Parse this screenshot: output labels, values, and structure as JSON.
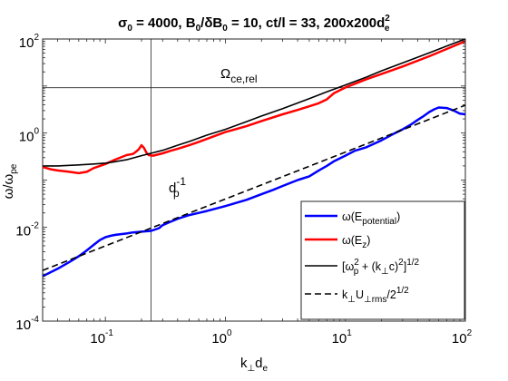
{
  "chart_data": {
    "type": "line",
    "title": {
      "sigma_prefix": "σ",
      "sigma_sub": "0",
      "sigma_value": " = 4000, B",
      "b_sub": "0",
      "ratio_text": "/δB",
      "db_sub": "0",
      "rest": " = 10, ct/l = 33, 200x200d",
      "d_sup": "2",
      "d_sub": "e"
    },
    "xlabel": {
      "base": "k",
      "sub": "⊥",
      "mid": "d",
      "sub2": "e"
    },
    "ylabel": {
      "base": "ω/ω",
      "sub": "pe"
    },
    "x_scale": "log",
    "y_scale": "log",
    "xlim": [
      0.03,
      100
    ],
    "ylim": [
      0.0001,
      100
    ],
    "x_ticks": [
      {
        "value": 0.1,
        "base": "10",
        "exp": "-1"
      },
      {
        "value": 1,
        "base": "10",
        "exp": "0"
      },
      {
        "value": 10,
        "base": "10",
        "exp": "1"
      },
      {
        "value": 100,
        "base": "10",
        "exp": "2"
      }
    ],
    "y_ticks": [
      {
        "value": 0.0001,
        "base": "10",
        "exp": "-4"
      },
      {
        "value": 0.01,
        "base": "10",
        "exp": "-2"
      },
      {
        "value": 1,
        "base": "10",
        "exp": "0"
      },
      {
        "value": 100,
        "base": "10",
        "exp": "2"
      }
    ],
    "grid": false,
    "reference_lines": {
      "horizontal": {
        "y": 9.2,
        "label": "Ω",
        "label_sub": "ce,rel"
      },
      "vertical": {
        "x": 0.24,
        "label": "d",
        "label_sup": "-1",
        "label_sub": "p"
      }
    },
    "legend_position": "bottom-right",
    "series": [
      {
        "label": {
          "base": "ω(E",
          "sub": "potential",
          "end": ")"
        },
        "color": "#0000ff",
        "style": "solid",
        "x": [
          0.03,
          0.04,
          0.05,
          0.06,
          0.07,
          0.08,
          0.09,
          0.1,
          0.11,
          0.12,
          0.13,
          0.15,
          0.17,
          0.2,
          0.24,
          0.28,
          0.3,
          0.35,
          0.4,
          0.5,
          0.6,
          0.7,
          0.8,
          1,
          1.2,
          1.5,
          2,
          2.5,
          3,
          4,
          5,
          6,
          7,
          8,
          10,
          12,
          15,
          20,
          25,
          30,
          35,
          40,
          45,
          50,
          55,
          60,
          70,
          80,
          90,
          100
        ],
        "y": [
          0.0009,
          0.0013,
          0.0018,
          0.0024,
          0.0032,
          0.0042,
          0.0053,
          0.0061,
          0.0065,
          0.0068,
          0.007,
          0.0073,
          0.0077,
          0.008,
          0.0083,
          0.0095,
          0.011,
          0.013,
          0.015,
          0.018,
          0.02,
          0.022,
          0.024,
          0.028,
          0.032,
          0.038,
          0.05,
          0.062,
          0.075,
          0.1,
          0.12,
          0.16,
          0.2,
          0.25,
          0.33,
          0.42,
          0.5,
          0.7,
          0.95,
          1.2,
          1.5,
          1.9,
          2.3,
          2.8,
          3.2,
          3.5,
          3.4,
          3,
          2.6,
          2.5
        ]
      },
      {
        "label": {
          "base": "ω(E",
          "sub": "z",
          "end": ")"
        },
        "color": "#ff0000",
        "style": "solid",
        "x": [
          0.03,
          0.035,
          0.04,
          0.05,
          0.06,
          0.07,
          0.08,
          0.1,
          0.12,
          0.15,
          0.17,
          0.18,
          0.19,
          0.2,
          0.21,
          0.22,
          0.23,
          0.25,
          0.3,
          0.35,
          0.4,
          0.5,
          0.6,
          0.8,
          1,
          1.5,
          2,
          3,
          4,
          5,
          6,
          7,
          8,
          10,
          15,
          20,
          30,
          50,
          100
        ],
        "y": [
          0.19,
          0.17,
          0.16,
          0.15,
          0.14,
          0.15,
          0.18,
          0.22,
          0.27,
          0.34,
          0.36,
          0.4,
          0.45,
          0.55,
          0.48,
          0.38,
          0.34,
          0.33,
          0.37,
          0.42,
          0.46,
          0.55,
          0.65,
          0.85,
          1.05,
          1.4,
          1.8,
          2.5,
          3.1,
          3.7,
          4.3,
          5.2,
          7,
          9.3,
          14,
          18,
          26,
          43,
          90
        ]
      },
      {
        "label": {
          "base": "[ω",
          "sup": "2",
          "sub": "p",
          "mid": " + (k",
          "sub2": "⊥",
          "end": "c)",
          "sup2": "2",
          "tail": "]",
          "sup3": "1/2"
        },
        "color": "#000000",
        "style": "solid",
        "x": [
          0.03,
          0.04,
          0.05,
          0.06,
          0.08,
          0.1,
          0.12,
          0.15,
          0.2,
          0.25,
          0.3,
          0.4,
          0.5,
          0.7,
          1,
          1.5,
          2,
          3,
          5,
          7,
          10,
          15,
          20,
          30,
          50,
          70,
          100
        ],
        "y": [
          0.2,
          0.2,
          0.205,
          0.21,
          0.22,
          0.23,
          0.245,
          0.27,
          0.33,
          0.38,
          0.43,
          0.55,
          0.66,
          0.9,
          1.2,
          1.75,
          2.3,
          3.3,
          5.4,
          7.5,
          10.5,
          15.5,
          21,
          31,
          51,
          71,
          100
        ]
      },
      {
        "label": {
          "base": "k",
          "sub": "⊥",
          "mid": "U",
          "sub2": "⊥rms",
          "end": "/2",
          "sup": "1/2"
        },
        "color": "#000000",
        "style": "dashed",
        "x": [
          0.03,
          100
        ],
        "y": [
          0.0012,
          3.9
        ]
      }
    ]
  }
}
